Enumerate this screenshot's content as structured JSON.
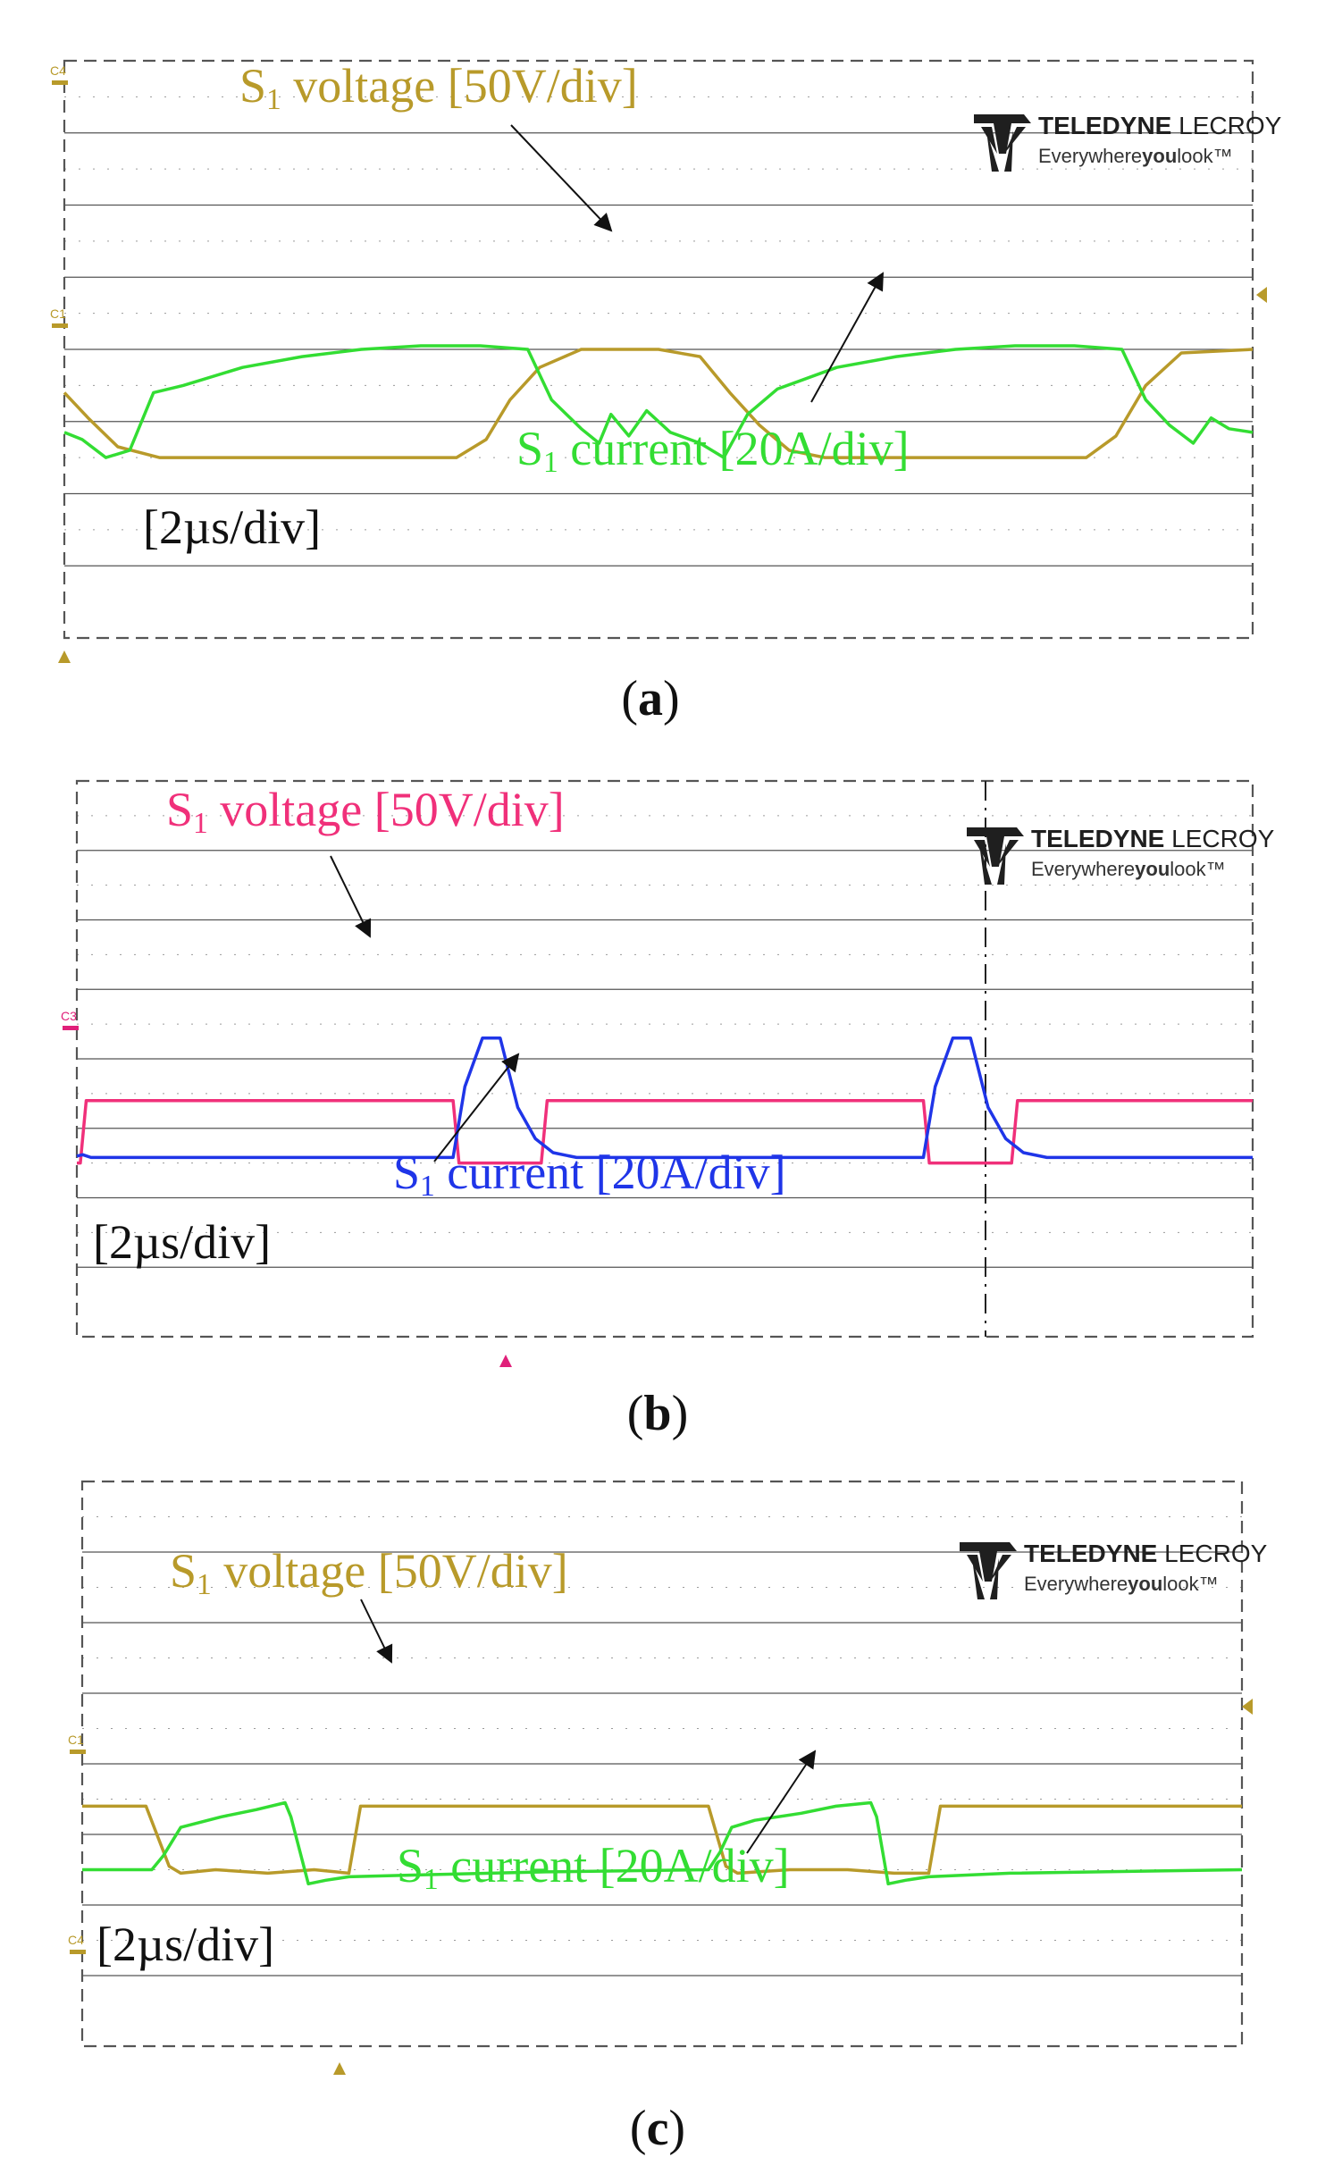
{
  "colors": {
    "grid": "#555555",
    "dots": "#9a9a9a",
    "brand": "#1f1f1f",
    "voltage_gold": "#b89a2a",
    "voltage_pink": "#f0307a",
    "current_green": "#33dd33",
    "current_blue": "#1f35e8",
    "marker_pink": "#e0207a",
    "marker_gold": "#b89a2a"
  },
  "brand": {
    "name_bold": "TELEDYNE",
    "name_light": " LECROY",
    "tagline_light": "Everywhere",
    "tagline_bold": "you",
    "tagline_tail": "look™"
  },
  "chart_data": [
    {
      "type": "line",
      "panel_label": "a",
      "time_scale": "[2µs/div]",
      "grid": {
        "divisions_x": 10,
        "divisions_y": 8
      },
      "channel_markers": [
        "C4",
        "C1"
      ],
      "series": [
        {
          "name": "S₁ voltage [50V/div]",
          "label_pre": "S",
          "label_sub": "1",
          "label_post": " voltage [50V/div]",
          "color": "#b89a2a",
          "x_div": [
            0,
            0.2,
            0.45,
            0.8,
            3.3,
            3.55,
            3.75,
            4.0,
            4.35,
            5.0,
            5.35,
            5.6,
            5.85,
            6.1,
            6.4,
            8.6,
            8.85,
            9.1,
            9.4,
            10
          ],
          "y_div": [
            3.4,
            3.05,
            2.65,
            2.5,
            2.5,
            2.75,
            3.3,
            3.75,
            4.0,
            4.0,
            3.9,
            3.4,
            2.95,
            2.6,
            2.5,
            2.5,
            2.8,
            3.5,
            3.95,
            4.0
          ]
        },
        {
          "name": "S₁ current [20A/div]",
          "label_pre": "S",
          "label_sub": "1",
          "label_post": " current [20A/div]",
          "color": "#33dd33",
          "x_div": [
            0,
            0.15,
            0.35,
            0.55,
            0.75,
            1.0,
            1.5,
            2.0,
            2.5,
            3.0,
            3.5,
            3.9,
            4.1,
            4.35,
            4.5,
            4.6,
            4.75,
            4.9,
            5.1,
            5.35,
            5.55,
            5.75,
            6.0,
            6.5,
            7.0,
            7.5,
            8.0,
            8.5,
            8.9,
            9.1,
            9.3,
            9.5,
            9.65,
            9.8,
            10
          ],
          "y_div": [
            2.85,
            2.75,
            2.5,
            2.6,
            3.4,
            3.5,
            3.75,
            3.9,
            4.0,
            4.05,
            4.05,
            4.0,
            3.3,
            2.9,
            2.7,
            3.1,
            2.8,
            3.15,
            2.85,
            2.7,
            2.5,
            3.1,
            3.45,
            3.75,
            3.9,
            4.0,
            4.05,
            4.05,
            4.0,
            3.3,
            2.95,
            2.7,
            3.05,
            2.9,
            2.85
          ]
        }
      ]
    },
    {
      "type": "line",
      "panel_label": "b",
      "time_scale": "[2µs/div]",
      "grid": {
        "divisions_x": 10,
        "divisions_y": 8
      },
      "channel_markers": [
        "C3"
      ],
      "series": [
        {
          "name": "S₁ voltage [50V/div]",
          "label_pre": "S",
          "label_sub": "1",
          "label_post": " voltage [50V/div]",
          "color": "#f0307a",
          "x_div": [
            0,
            0.03,
            0.08,
            3.2,
            3.25,
            3.95,
            4.0,
            7.2,
            7.25,
            7.95,
            8.0,
            10
          ],
          "y_div": [
            2.5,
            2.5,
            3.4,
            3.4,
            2.5,
            2.5,
            3.4,
            3.4,
            2.5,
            2.5,
            3.4,
            3.4
          ]
        },
        {
          "name": "S₁ current [20A/div]",
          "label_pre": "S",
          "label_sub": "1",
          "label_post": " current [20A/div]",
          "color": "#1f35e8",
          "x_div": [
            0,
            0.05,
            0.12,
            3.2,
            3.3,
            3.45,
            3.6,
            3.75,
            3.9,
            4.05,
            4.25,
            7.2,
            7.3,
            7.45,
            7.6,
            7.75,
            7.9,
            8.05,
            8.25,
            10
          ],
          "y_div": [
            2.6,
            2.62,
            2.58,
            2.58,
            3.6,
            4.3,
            4.3,
            3.3,
            2.85,
            2.65,
            2.58,
            2.58,
            3.6,
            4.3,
            4.3,
            3.3,
            2.85,
            2.65,
            2.58,
            2.58
          ]
        }
      ]
    },
    {
      "type": "line",
      "panel_label": "c",
      "time_scale": "[2µs/div]",
      "grid": {
        "divisions_x": 10,
        "divisions_y": 8
      },
      "channel_markers": [
        "C1",
        "C4"
      ],
      "series": [
        {
          "name": "S₁ voltage [50V/div]",
          "label_pre": "S",
          "label_sub": "1",
          "label_post": " voltage [50V/div]",
          "color": "#b89a2a",
          "x_div": [
            0,
            0.55,
            0.75,
            0.85,
            1.15,
            1.6,
            2.0,
            2.3,
            2.4,
            5.4,
            5.55,
            5.65,
            6.1,
            6.6,
            7.0,
            7.3,
            7.4,
            10
          ],
          "y_div": [
            3.4,
            3.4,
            2.55,
            2.45,
            2.5,
            2.45,
            2.5,
            2.45,
            3.4,
            3.4,
            2.55,
            2.45,
            2.5,
            2.5,
            2.45,
            2.45,
            3.4,
            3.4
          ]
        },
        {
          "name": "S₁ current [20A/div]",
          "label_pre": "S",
          "label_sub": "1",
          "label_post": " current [20A/div]",
          "color": "#33dd33",
          "x_div": [
            0,
            0.6,
            0.7,
            0.85,
            1.2,
            1.5,
            1.75,
            1.8,
            1.95,
            2.1,
            2.3,
            3.0,
            4.0,
            5.4,
            5.5,
            5.6,
            5.8,
            6.2,
            6.5,
            6.8,
            6.85,
            6.95,
            7.1,
            7.3,
            8.0,
            10
          ],
          "y_div": [
            2.5,
            2.5,
            2.7,
            3.1,
            3.25,
            3.35,
            3.45,
            3.25,
            2.3,
            2.35,
            2.4,
            2.43,
            2.47,
            2.5,
            2.75,
            3.1,
            3.2,
            3.3,
            3.4,
            3.45,
            3.25,
            2.3,
            2.35,
            2.4,
            2.45,
            2.5
          ]
        }
      ]
    }
  ]
}
